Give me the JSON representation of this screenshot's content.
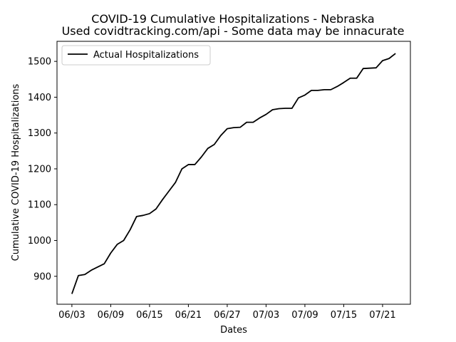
{
  "chart_data": {
    "type": "line",
    "title": "COVID-19 Cumulative Hospitalizations - Nebraska",
    "subtitle": "Used covidtracking.com/api - Some data may be innacurate",
    "xlabel": "Dates",
    "ylabel": "Cumulative COVID-19 Hospitalizations",
    "x_tick_labels": [
      "06/03",
      "06/09",
      "06/15",
      "06/21",
      "06/27",
      "07/03",
      "07/09",
      "07/15",
      "07/21"
    ],
    "y_ticks": [
      900,
      1000,
      1100,
      1200,
      1300,
      1400,
      1500
    ],
    "ylim": [
      822,
      1556
    ],
    "x_start_date": "06/03",
    "x_range_days": [
      -2.3,
      52.3
    ],
    "legend_position": "upper-left",
    "series": [
      {
        "name": "Actual Hospitalizations",
        "color": "#000000",
        "values": [
          851,
          902,
          905,
          917,
          926,
          935,
          965,
          989,
          1000,
          1030,
          1067,
          1070,
          1075,
          1088,
          1114,
          1138,
          1162,
          1200,
          1212,
          1212,
          1233,
          1257,
          1268,
          1293,
          1312,
          1315,
          1316,
          1330,
          1330,
          1342,
          1352,
          1365,
          1368,
          1369,
          1369,
          1398,
          1406,
          1419,
          1419,
          1421,
          1421,
          1430,
          1441,
          1453,
          1453,
          1480,
          1481,
          1482,
          1502,
          1508,
          1522
        ]
      }
    ]
  }
}
